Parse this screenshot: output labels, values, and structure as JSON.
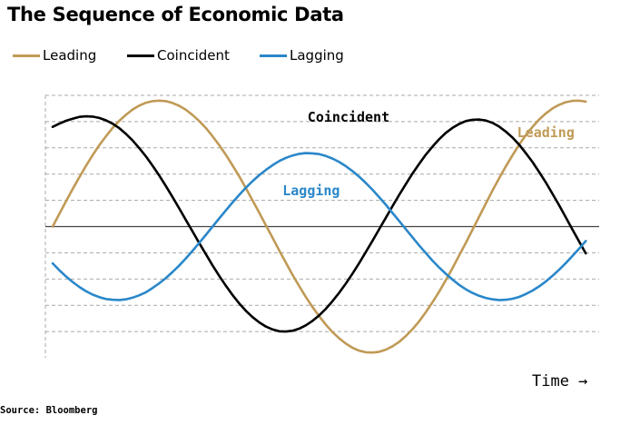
{
  "title": "The Sequence of Economic Data",
  "source": "Source: Bloomberg",
  "chart_data": {
    "type": "line",
    "title": "The Sequence of Economic Data",
    "xlabel": "Time →",
    "ylabel": "",
    "x": [
      0,
      0.25,
      0.5,
      0.75,
      1,
      1.25,
      1.5,
      1.75,
      2,
      2.25,
      2.5,
      2.75,
      3,
      3.25,
      3.5,
      3.75,
      4,
      4.25,
      4.5,
      4.75,
      5,
      5.25,
      5.5,
      5.75,
      6,
      6.25,
      6.5,
      6.75,
      7,
      7.25,
      7.5,
      7.75,
      8,
      8.25,
      8.5,
      8.75,
      9,
      9.25,
      9.5,
      9.75,
      10,
      10.25,
      10.5,
      10.75,
      11,
      11.25,
      11.5,
      11.75,
      12,
      12.25,
      12.5,
      12.75,
      13,
      13.25,
      13.5,
      13.75,
      14,
      14.25,
      14.5,
      14.75,
      15,
      15.25,
      15.5,
      15.75,
      16,
      16.25,
      16.5,
      16.75,
      17,
      17.25,
      17.5,
      17.75,
      18,
      18.25,
      18.5,
      18.75,
      19,
      19.25,
      19.5,
      19.75,
      20
    ],
    "xlim": [
      0,
      20.5
    ],
    "ylim": [
      -5,
      5
    ],
    "y_gridlines": [
      -4,
      -3,
      -2,
      -1,
      0,
      1,
      2,
      3,
      4,
      5
    ],
    "y_zero_line": 0,
    "grid": true,
    "legend": "top-left",
    "series": [
      {
        "name": "Leading",
        "color": "#c09a56",
        "values": [
          0,
          0.48,
          0.96,
          1.43,
          1.88,
          2.31,
          2.72,
          3.1,
          3.44,
          3.76,
          4.03,
          4.26,
          4.46,
          4.61,
          4.72,
          4.78,
          4.8,
          4.78,
          4.71,
          4.6,
          4.45,
          4.25,
          4.02,
          3.75,
          3.44,
          3.1,
          2.73,
          2.33,
          1.91,
          1.46,
          1,
          0.53,
          0.05,
          -0.43,
          -0.91,
          -1.38,
          -1.84,
          -2.27,
          -2.69,
          -3.07,
          -3.42,
          -3.74,
          -4.02,
          -4.26,
          -4.46,
          -4.62,
          -4.73,
          -4.79,
          -4.8,
          -4.77,
          -4.69,
          -4.56,
          -4.39,
          -4.17,
          -3.91,
          -3.61,
          -3.26,
          -2.88,
          -2.48,
          -2.04,
          -1.58,
          -1.1,
          -0.62,
          -0.12,
          0.38,
          0.88,
          1.37,
          1.84,
          2.29,
          2.72,
          3.12,
          3.48,
          3.8,
          4.08,
          4.31,
          4.5,
          4.64,
          4.74,
          4.79,
          4.8,
          4.76
        ]
      },
      {
        "name": "Coincident",
        "color": "#000000",
        "values": [
          3.8,
          3.92,
          4.03,
          4.11,
          4.18,
          4.2,
          4.19,
          4.14,
          4.05,
          3.92,
          3.75,
          3.53,
          3.28,
          2.99,
          2.67,
          2.32,
          1.94,
          1.54,
          1.12,
          0.69,
          0.25,
          -0.19,
          -0.63,
          -1.06,
          -1.48,
          -1.88,
          -2.26,
          -2.61,
          -2.93,
          -3.21,
          -3.45,
          -3.65,
          -3.81,
          -3.92,
          -3.99,
          -4.0,
          -3.97,
          -3.89,
          -3.76,
          -3.59,
          -3.38,
          -3.13,
          -2.84,
          -2.52,
          -2.17,
          -1.79,
          -1.39,
          -0.97,
          -0.54,
          -0.1,
          0.34,
          0.78,
          1.21,
          1.62,
          2.02,
          2.39,
          2.74,
          3.05,
          3.33,
          3.57,
          3.76,
          3.91,
          4.02,
          4.07,
          4.08,
          4.04,
          3.95,
          3.81,
          3.62,
          3.39,
          3.12,
          2.8,
          2.46,
          2.08,
          1.68,
          1.25,
          0.81,
          0.35,
          -0.11,
          -0.57,
          -1.02
        ]
      },
      {
        "name": "Lagging",
        "color": "#2a87c9",
        "values": [
          -1.4,
          -1.66,
          -1.9,
          -2.11,
          -2.3,
          -2.46,
          -2.59,
          -2.69,
          -2.76,
          -2.79,
          -2.8,
          -2.77,
          -2.71,
          -2.62,
          -2.5,
          -2.34,
          -2.16,
          -1.96,
          -1.73,
          -1.48,
          -1.21,
          -0.92,
          -0.62,
          -0.31,
          0,
          0.31,
          0.62,
          0.92,
          1.21,
          1.48,
          1.73,
          1.96,
          2.16,
          2.34,
          2.5,
          2.62,
          2.71,
          2.77,
          2.8,
          2.79,
          2.76,
          2.69,
          2.59,
          2.46,
          2.3,
          2.11,
          1.9,
          1.66,
          1.4,
          1.12,
          0.83,
          0.52,
          0.21,
          -0.1,
          -0.41,
          -0.72,
          -1.01,
          -1.3,
          -1.56,
          -1.8,
          -2.02,
          -2.22,
          -2.39,
          -2.53,
          -2.64,
          -2.72,
          -2.77,
          -2.8,
          -2.79,
          -2.75,
          -2.68,
          -2.57,
          -2.44,
          -2.28,
          -2.09,
          -1.88,
          -1.64,
          -1.39,
          -1.12,
          -0.84,
          -0.55
        ]
      }
    ],
    "annotations": [
      {
        "text": "Coincident",
        "series": "Coincident",
        "x": 11.1,
        "y": 4.0
      },
      {
        "text": "Leading",
        "series": "Leading",
        "x": 18.5,
        "y": 3.4
      },
      {
        "text": "Lagging",
        "series": "Lagging",
        "x": 9.7,
        "y": 1.2
      }
    ]
  }
}
